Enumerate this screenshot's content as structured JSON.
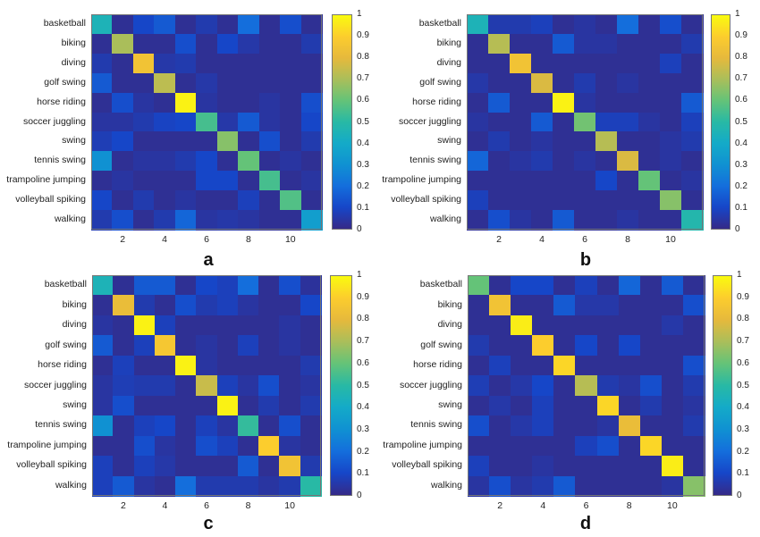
{
  "chart_data": [
    {
      "type": "heatmap",
      "title": "a",
      "row_labels": [
        "basketball",
        "biking",
        "diving",
        "golf swing",
        "horse riding",
        "soccer juggling",
        "swing",
        "tennis swing",
        "trampoline jumping",
        "volleyball spiking",
        "walking"
      ],
      "x_ticks": [
        2,
        4,
        6,
        8,
        10
      ],
      "colorbar_ticks": [
        0,
        0.1,
        0.2,
        0.3,
        0.4,
        0.5,
        0.6,
        0.7,
        0.8,
        0.9,
        1
      ],
      "colormap": "parula",
      "clim": [
        0,
        1
      ],
      "values": [
        [
          0.45,
          0.02,
          0.1,
          0.15,
          0.02,
          0.06,
          0.02,
          0.2,
          0.02,
          0.12,
          0.02
        ],
        [
          0.02,
          0.7,
          0.02,
          0.02,
          0.12,
          0.02,
          0.1,
          0.05,
          0.02,
          0.02,
          0.06
        ],
        [
          0.06,
          0.02,
          0.85,
          0.05,
          0.06,
          0.02,
          0.02,
          0.02,
          0.02,
          0.02,
          0.02
        ],
        [
          0.15,
          0.02,
          0.02,
          0.73,
          0.02,
          0.05,
          0.02,
          0.02,
          0.02,
          0.02,
          0.02
        ],
        [
          0.02,
          0.12,
          0.04,
          0.02,
          0.98,
          0.04,
          0.02,
          0.02,
          0.04,
          0.02,
          0.12
        ],
        [
          0.04,
          0.04,
          0.06,
          0.09,
          0.1,
          0.55,
          0.05,
          0.15,
          0.04,
          0.02,
          0.1
        ],
        [
          0.07,
          0.1,
          0.02,
          0.02,
          0.02,
          0.02,
          0.65,
          0.02,
          0.12,
          0.02,
          0.06
        ],
        [
          0.3,
          0.02,
          0.04,
          0.04,
          0.06,
          0.1,
          0.02,
          0.6,
          0.02,
          0.04,
          0.02
        ],
        [
          0.02,
          0.04,
          0.02,
          0.02,
          0.02,
          0.1,
          0.1,
          0.02,
          0.55,
          0.02,
          0.04
        ],
        [
          0.1,
          0.02,
          0.06,
          0.02,
          0.04,
          0.02,
          0.02,
          0.08,
          0.02,
          0.57,
          0.02
        ],
        [
          0.06,
          0.12,
          0.02,
          0.06,
          0.18,
          0.04,
          0.05,
          0.04,
          0.02,
          0.02,
          0.35
        ]
      ]
    },
    {
      "type": "heatmap",
      "title": "b",
      "row_labels": [
        "basketball",
        "biking",
        "diving",
        "golf swing",
        "horse riding",
        "soccer juggling",
        "swing",
        "tennis swing",
        "trampoline jumping",
        "volleyball spiking",
        "walking"
      ],
      "x_ticks": [
        2,
        4,
        6,
        8,
        10
      ],
      "colorbar_ticks": [
        0,
        0.1,
        0.2,
        0.3,
        0.4,
        0.5,
        0.6,
        0.7,
        0.8,
        0.9,
        1
      ],
      "colormap": "parula",
      "clim": [
        0,
        1
      ],
      "values": [
        [
          0.45,
          0.06,
          0.06,
          0.08,
          0.02,
          0.04,
          0.02,
          0.2,
          0.02,
          0.12,
          0.02
        ],
        [
          0.02,
          0.72,
          0.02,
          0.02,
          0.15,
          0.04,
          0.04,
          0.02,
          0.02,
          0.02,
          0.06
        ],
        [
          0.02,
          0.02,
          0.85,
          0.02,
          0.02,
          0.02,
          0.02,
          0.02,
          0.02,
          0.08,
          0.02
        ],
        [
          0.05,
          0.02,
          0.02,
          0.78,
          0.02,
          0.06,
          0.02,
          0.04,
          0.02,
          0.02,
          0.02
        ],
        [
          0.02,
          0.15,
          0.02,
          0.02,
          0.98,
          0.04,
          0.02,
          0.02,
          0.02,
          0.02,
          0.15
        ],
        [
          0.04,
          0.02,
          0.02,
          0.15,
          0.02,
          0.62,
          0.08,
          0.08,
          0.04,
          0.02,
          0.08
        ],
        [
          0.02,
          0.06,
          0.02,
          0.04,
          0.02,
          0.02,
          0.72,
          0.02,
          0.02,
          0.04,
          0.06
        ],
        [
          0.18,
          0.02,
          0.04,
          0.06,
          0.02,
          0.04,
          0.02,
          0.78,
          0.02,
          0.04,
          0.02
        ],
        [
          0.02,
          0.02,
          0.02,
          0.02,
          0.02,
          0.02,
          0.1,
          0.02,
          0.6,
          0.02,
          0.04
        ],
        [
          0.08,
          0.02,
          0.02,
          0.02,
          0.02,
          0.02,
          0.02,
          0.02,
          0.02,
          0.65,
          0.02
        ],
        [
          0.02,
          0.12,
          0.04,
          0.02,
          0.15,
          0.02,
          0.02,
          0.04,
          0.02,
          0.02,
          0.48
        ]
      ]
    },
    {
      "type": "heatmap",
      "title": "c",
      "row_labels": [
        "basketball",
        "biking",
        "diving",
        "golf swing",
        "horse riding",
        "soccer juggling",
        "swing",
        "tennis swing",
        "trampoline jumping",
        "volleyball spiking",
        "walking"
      ],
      "x_ticks": [
        2,
        4,
        6,
        8,
        10
      ],
      "colorbar_ticks": [
        0,
        0.1,
        0.2,
        0.3,
        0.4,
        0.5,
        0.6,
        0.7,
        0.8,
        0.9,
        1
      ],
      "colormap": "parula",
      "clim": [
        0,
        1
      ],
      "values": [
        [
          0.45,
          0.02,
          0.15,
          0.15,
          0.02,
          0.1,
          0.08,
          0.2,
          0.02,
          0.12,
          0.03
        ],
        [
          0.02,
          0.82,
          0.06,
          0.02,
          0.12,
          0.06,
          0.08,
          0.04,
          0.02,
          0.02,
          0.1
        ],
        [
          0.04,
          0.02,
          0.98,
          0.08,
          0.02,
          0.02,
          0.02,
          0.02,
          0.02,
          0.04,
          0.02
        ],
        [
          0.15,
          0.02,
          0.08,
          0.87,
          0.02,
          0.04,
          0.02,
          0.08,
          0.02,
          0.04,
          0.02
        ],
        [
          0.02,
          0.08,
          0.02,
          0.02,
          0.98,
          0.04,
          0.02,
          0.02,
          0.02,
          0.02,
          0.06
        ],
        [
          0.04,
          0.07,
          0.06,
          0.06,
          0.02,
          0.75,
          0.08,
          0.04,
          0.12,
          0.02,
          0.04
        ],
        [
          0.04,
          0.12,
          0.02,
          0.02,
          0.02,
          0.02,
          0.98,
          0.02,
          0.06,
          0.02,
          0.06
        ],
        [
          0.3,
          0.02,
          0.08,
          0.1,
          0.02,
          0.08,
          0.04,
          0.52,
          0.02,
          0.12,
          0.02
        ],
        [
          0.02,
          0.02,
          0.12,
          0.04,
          0.02,
          0.12,
          0.08,
          0.02,
          0.9,
          0.04,
          0.02
        ],
        [
          0.08,
          0.02,
          0.08,
          0.05,
          0.02,
          0.02,
          0.02,
          0.15,
          0.02,
          0.85,
          0.06
        ],
        [
          0.08,
          0.15,
          0.04,
          0.02,
          0.2,
          0.06,
          0.06,
          0.06,
          0.04,
          0.06,
          0.5
        ]
      ]
    },
    {
      "type": "heatmap",
      "title": "d",
      "row_labels": [
        "basketball",
        "biking",
        "diving",
        "golf swing",
        "horse riding",
        "soccer juggling",
        "swing",
        "tennis swing",
        "trampoline jumping",
        "volleyball spiking",
        "walking"
      ],
      "x_ticks": [
        2,
        4,
        6,
        8,
        10
      ],
      "colorbar_ticks": [
        0,
        0.1,
        0.2,
        0.3,
        0.4,
        0.5,
        0.6,
        0.7,
        0.8,
        0.9,
        1
      ],
      "colormap": "parula",
      "clim": [
        0,
        1
      ],
      "values": [
        [
          0.6,
          0.02,
          0.1,
          0.1,
          0.02,
          0.08,
          0.02,
          0.18,
          0.02,
          0.15,
          0.02
        ],
        [
          0.02,
          0.85,
          0.02,
          0.02,
          0.15,
          0.05,
          0.05,
          0.02,
          0.02,
          0.02,
          0.12
        ],
        [
          0.02,
          0.02,
          0.97,
          0.02,
          0.02,
          0.02,
          0.02,
          0.02,
          0.02,
          0.05,
          0.02
        ],
        [
          0.06,
          0.02,
          0.02,
          0.9,
          0.02,
          0.1,
          0.02,
          0.1,
          0.02,
          0.02,
          0.02
        ],
        [
          0.02,
          0.08,
          0.02,
          0.02,
          0.92,
          0.02,
          0.02,
          0.02,
          0.02,
          0.02,
          0.12
        ],
        [
          0.07,
          0.02,
          0.05,
          0.1,
          0.02,
          0.72,
          0.06,
          0.04,
          0.12,
          0.02,
          0.06
        ],
        [
          0.02,
          0.05,
          0.02,
          0.08,
          0.02,
          0.02,
          0.92,
          0.02,
          0.06,
          0.02,
          0.04
        ],
        [
          0.12,
          0.02,
          0.05,
          0.08,
          0.02,
          0.02,
          0.04,
          0.82,
          0.02,
          0.02,
          0.06
        ],
        [
          0.02,
          0.02,
          0.02,
          0.02,
          0.02,
          0.08,
          0.12,
          0.02,
          0.92,
          0.02,
          0.02
        ],
        [
          0.08,
          0.02,
          0.02,
          0.04,
          0.02,
          0.02,
          0.02,
          0.02,
          0.02,
          0.97,
          0.02
        ],
        [
          0.04,
          0.12,
          0.04,
          0.06,
          0.15,
          0.02,
          0.02,
          0.02,
          0.02,
          0.04,
          0.65
        ]
      ]
    }
  ]
}
